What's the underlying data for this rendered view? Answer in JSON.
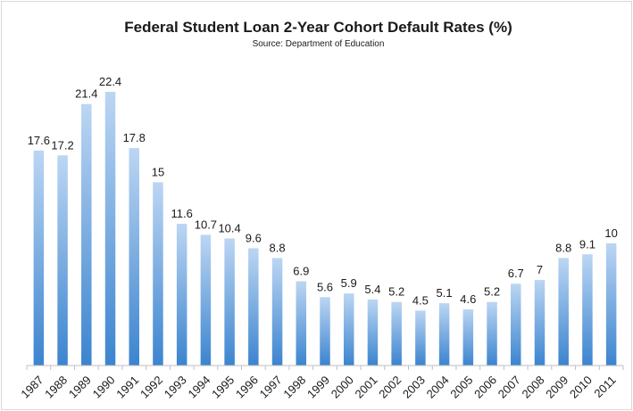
{
  "chart_data": {
    "type": "bar",
    "title": "Federal Student Loan 2-Year Cohort Default Rates (%)",
    "subtitle": "Source: Department of Education",
    "xlabel": "",
    "ylabel": "",
    "categories": [
      "1987",
      "1988",
      "1989",
      "1990",
      "1991",
      "1992",
      "1993",
      "1994",
      "1995",
      "1996",
      "1997",
      "1998",
      "1999",
      "2000",
      "2001",
      "2002",
      "2003",
      "2004",
      "2005",
      "2006",
      "2007",
      "2008",
      "2009",
      "2010",
      "2011"
    ],
    "values": [
      17.6,
      17.2,
      21.4,
      22.4,
      17.8,
      15,
      11.6,
      10.7,
      10.4,
      9.6,
      8.8,
      6.9,
      5.6,
      5.9,
      5.4,
      5.2,
      4.5,
      5.1,
      4.6,
      5.2,
      6.7,
      7,
      8.8,
      9.1,
      10
    ],
    "value_labels": [
      "17.6",
      "17.2",
      "21.4",
      "22.4",
      "17.8",
      "15",
      "11.6",
      "10.7",
      "10.4",
      "9.6",
      "8.8",
      "6.9",
      "5.6",
      "5.9",
      "5.4",
      "5.2",
      "4.5",
      "5.1",
      "4.6",
      "5.2",
      "6.7",
      "7",
      "8.8",
      "9.1",
      "10"
    ],
    "ylim": [
      0,
      22.4
    ],
    "grid": false,
    "legend": "none",
    "colors": {
      "bar_top": "#bcd6f3",
      "bar_bottom": "#3b84cf",
      "axis": "#bfbfbf"
    }
  }
}
